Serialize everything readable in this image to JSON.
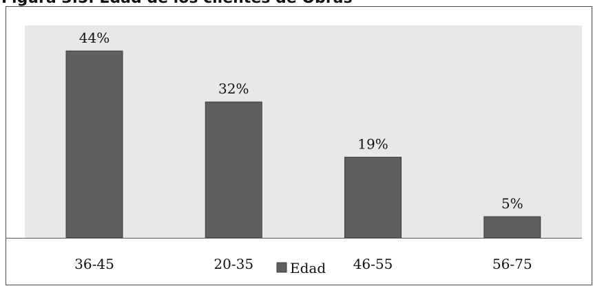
{
  "figure_caption": "Figura 3.5. Edad de los clientes de Obras",
  "colors": {
    "bar": "#5f5f5f",
    "bar_stroke": "#3c3c3c",
    "plot_area": "#e8e8e8",
    "axis": "#595959",
    "text": "#111111"
  },
  "chart_data": {
    "type": "bar",
    "title": "",
    "xlabel": "",
    "ylabel": "",
    "categories": [
      "36-45",
      "20-35",
      "46-55",
      "56-75"
    ],
    "series": [
      {
        "name": "Edad",
        "values": [
          44,
          32,
          19,
          5
        ],
        "labels": [
          "44%",
          "32%",
          "19%",
          "5%"
        ]
      }
    ],
    "ylim": [
      0,
      50
    ],
    "grid": false,
    "legend": "bottom"
  }
}
